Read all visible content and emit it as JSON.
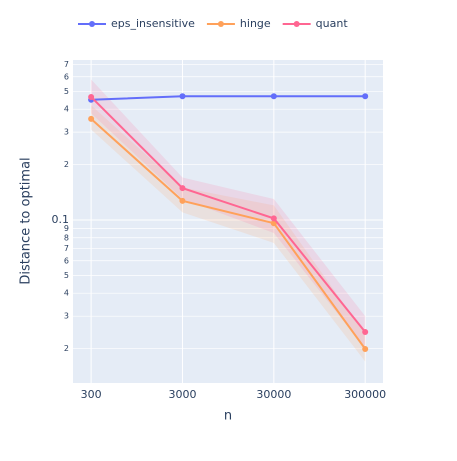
{
  "chart_data": {
    "type": "line",
    "x_label": "n",
    "y_label": "Distance to optimal",
    "x": [
      300,
      3000,
      30000,
      300000
    ],
    "series": [
      {
        "name": "eps_insensitive",
        "color": "#636efa",
        "values": [
          0.45,
          0.47,
          0.47,
          0.47
        ]
      },
      {
        "name": "hinge",
        "color": "#FFA15A",
        "values": [
          0.354,
          0.127,
          0.096,
          0.0199
        ],
        "lower": [
          0.31,
          0.11,
          0.075,
          0.017
        ],
        "upper": [
          0.42,
          0.15,
          0.12,
          0.024
        ]
      },
      {
        "name": "quant",
        "color": "#FF6692",
        "values": [
          0.466,
          0.149,
          0.102,
          0.0246
        ],
        "lower": [
          0.38,
          0.13,
          0.085,
          0.02
        ],
        "upper": [
          0.58,
          0.17,
          0.13,
          0.03
        ]
      }
    ],
    "xlog": true,
    "ylog": true,
    "xlim": [
      190,
      470000
    ],
    "ylim": [
      0.013,
      0.74
    ],
    "xticks": [
      300,
      3000,
      30000,
      300000
    ],
    "yticks": [
      {
        "value": 0.02,
        "label": "2"
      },
      {
        "value": 0.03,
        "label": "3"
      },
      {
        "value": 0.04,
        "label": "4"
      },
      {
        "value": 0.05,
        "label": "5"
      },
      {
        "value": 0.06,
        "label": "6"
      },
      {
        "value": 0.07,
        "label": "7"
      },
      {
        "value": 0.08,
        "label": "8"
      },
      {
        "value": 0.09,
        "label": "9"
      },
      0.1,
      {
        "value": 0.2,
        "label": "2"
      },
      {
        "value": 0.3,
        "label": "3"
      },
      {
        "value": 0.4,
        "label": "4"
      },
      {
        "value": 0.5,
        "label": "5"
      },
      {
        "value": 0.6,
        "label": "6"
      },
      {
        "value": 0.7,
        "label": "7"
      }
    ],
    "grid": true,
    "legend": "top"
  }
}
